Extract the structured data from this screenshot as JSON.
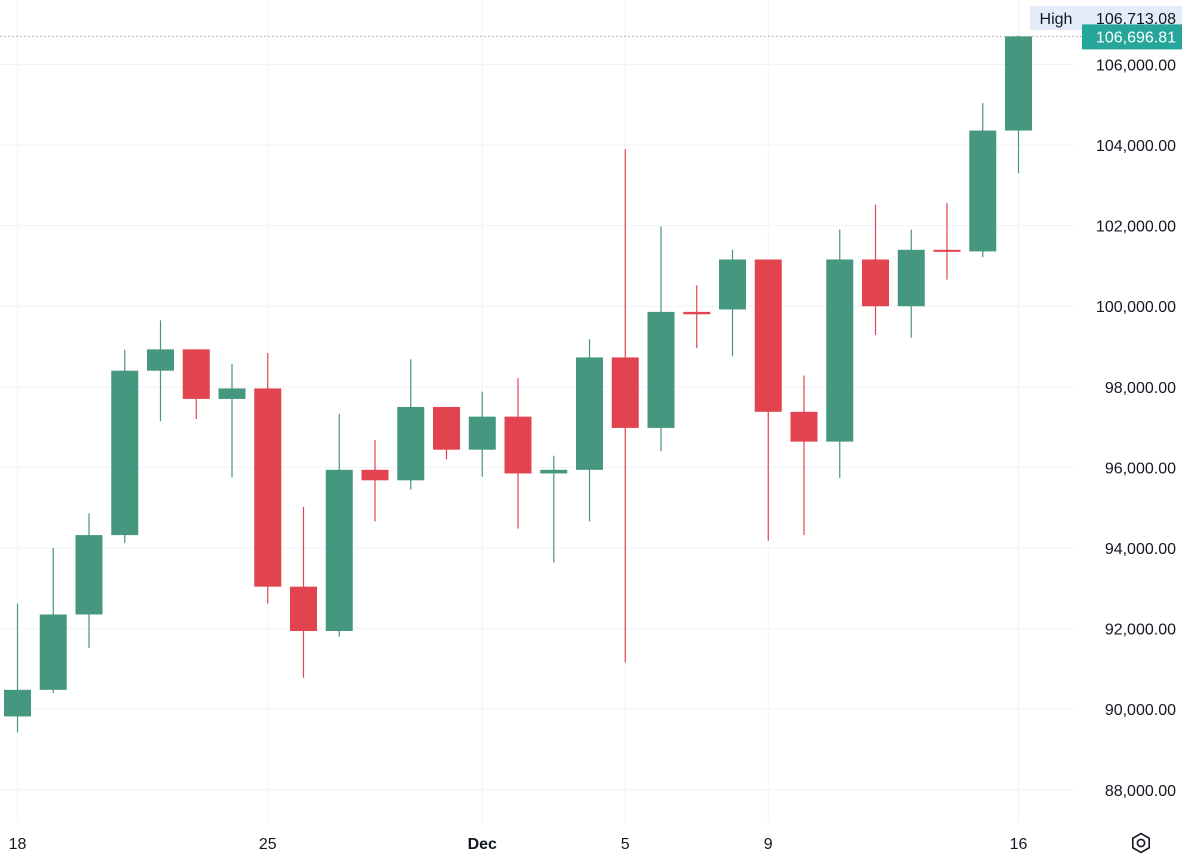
{
  "chart_data": {
    "type": "candlestick",
    "y_ticks": [
      "88,000.00",
      "90,000.00",
      "92,000.00",
      "94,000.00",
      "96,000.00",
      "98,000.00",
      "100,000.00",
      "102,000.00",
      "104,000.00",
      "106,000.00"
    ],
    "y_tick_values": [
      88000,
      90000,
      92000,
      94000,
      96000,
      98000,
      100000,
      102000,
      104000,
      106000
    ],
    "x_ticks": [
      {
        "label": "18",
        "day": 0,
        "bold": false
      },
      {
        "label": "25",
        "day": 7,
        "bold": false
      },
      {
        "label": "Dec",
        "day": 13,
        "bold": true
      },
      {
        "label": "5",
        "day": 17,
        "bold": false
      },
      {
        "label": "9",
        "day": 21,
        "bold": false
      },
      {
        "label": "16",
        "day": 28,
        "bold": false
      }
    ],
    "ylim": [
      87200,
      107600
    ],
    "grid": true,
    "up_color": "#26a69a",
    "down_color": "#ef5350",
    "candles": [
      {
        "o": 89820,
        "h": 92620,
        "l": 89420,
        "c": 90480
      },
      {
        "o": 90480,
        "h": 94000,
        "l": 90400,
        "c": 92350
      },
      {
        "o": 92350,
        "h": 94860,
        "l": 91520,
        "c": 94320
      },
      {
        "o": 94320,
        "h": 98920,
        "l": 94120,
        "c": 98400
      },
      {
        "o": 98400,
        "h": 99650,
        "l": 97150,
        "c": 98930
      },
      {
        "o": 98930,
        "h": 98930,
        "l": 97200,
        "c": 97700
      },
      {
        "o": 97700,
        "h": 98570,
        "l": 95750,
        "c": 97960
      },
      {
        "o": 97960,
        "h": 98840,
        "l": 92620,
        "c": 93040
      },
      {
        "o": 93040,
        "h": 95020,
        "l": 90780,
        "c": 91940
      },
      {
        "o": 91940,
        "h": 97330,
        "l": 91800,
        "c": 95940
      },
      {
        "o": 95940,
        "h": 96680,
        "l": 94660,
        "c": 95680
      },
      {
        "o": 95680,
        "h": 98680,
        "l": 95450,
        "c": 97500
      },
      {
        "o": 97500,
        "h": 97500,
        "l": 96200,
        "c": 96440
      },
      {
        "o": 96440,
        "h": 97880,
        "l": 95770,
        "c": 97260
      },
      {
        "o": 97260,
        "h": 98220,
        "l": 94480,
        "c": 95850
      },
      {
        "o": 95850,
        "h": 96290,
        "l": 93640,
        "c": 95940
      },
      {
        "o": 95940,
        "h": 99180,
        "l": 94660,
        "c": 98730
      },
      {
        "o": 98730,
        "h": 103900,
        "l": 91160,
        "c": 96980
      },
      {
        "o": 96980,
        "h": 101980,
        "l": 96400,
        "c": 99860
      },
      {
        "o": 99860,
        "h": 100520,
        "l": 98960,
        "c": 99800
      },
      {
        "o": 99920,
        "h": 101400,
        "l": 98760,
        "c": 101160
      },
      {
        "o": 101160,
        "h": 101160,
        "l": 94180,
        "c": 97380
      },
      {
        "o": 97380,
        "h": 98280,
        "l": 94320,
        "c": 96640
      },
      {
        "o": 96640,
        "h": 101900,
        "l": 95740,
        "c": 101160
      },
      {
        "o": 101160,
        "h": 102520,
        "l": 99290,
        "c": 100000
      },
      {
        "o": 100000,
        "h": 101900,
        "l": 99220,
        "c": 101400
      },
      {
        "o": 101400,
        "h": 102560,
        "l": 100660,
        "c": 101360
      },
      {
        "o": 101360,
        "h": 105040,
        "l": 101220,
        "c": 104360
      },
      {
        "o": 104360,
        "h": 106713.08,
        "l": 103300,
        "c": 106696.81
      }
    ],
    "high_label": {
      "text": "High",
      "value": "106,713.08",
      "y": 106713.08
    },
    "last_price": {
      "value": "106,696.81",
      "y": 106696.81,
      "color": "#26a69a"
    }
  },
  "controls": {
    "settings_icon": "settings-gear-icon"
  }
}
